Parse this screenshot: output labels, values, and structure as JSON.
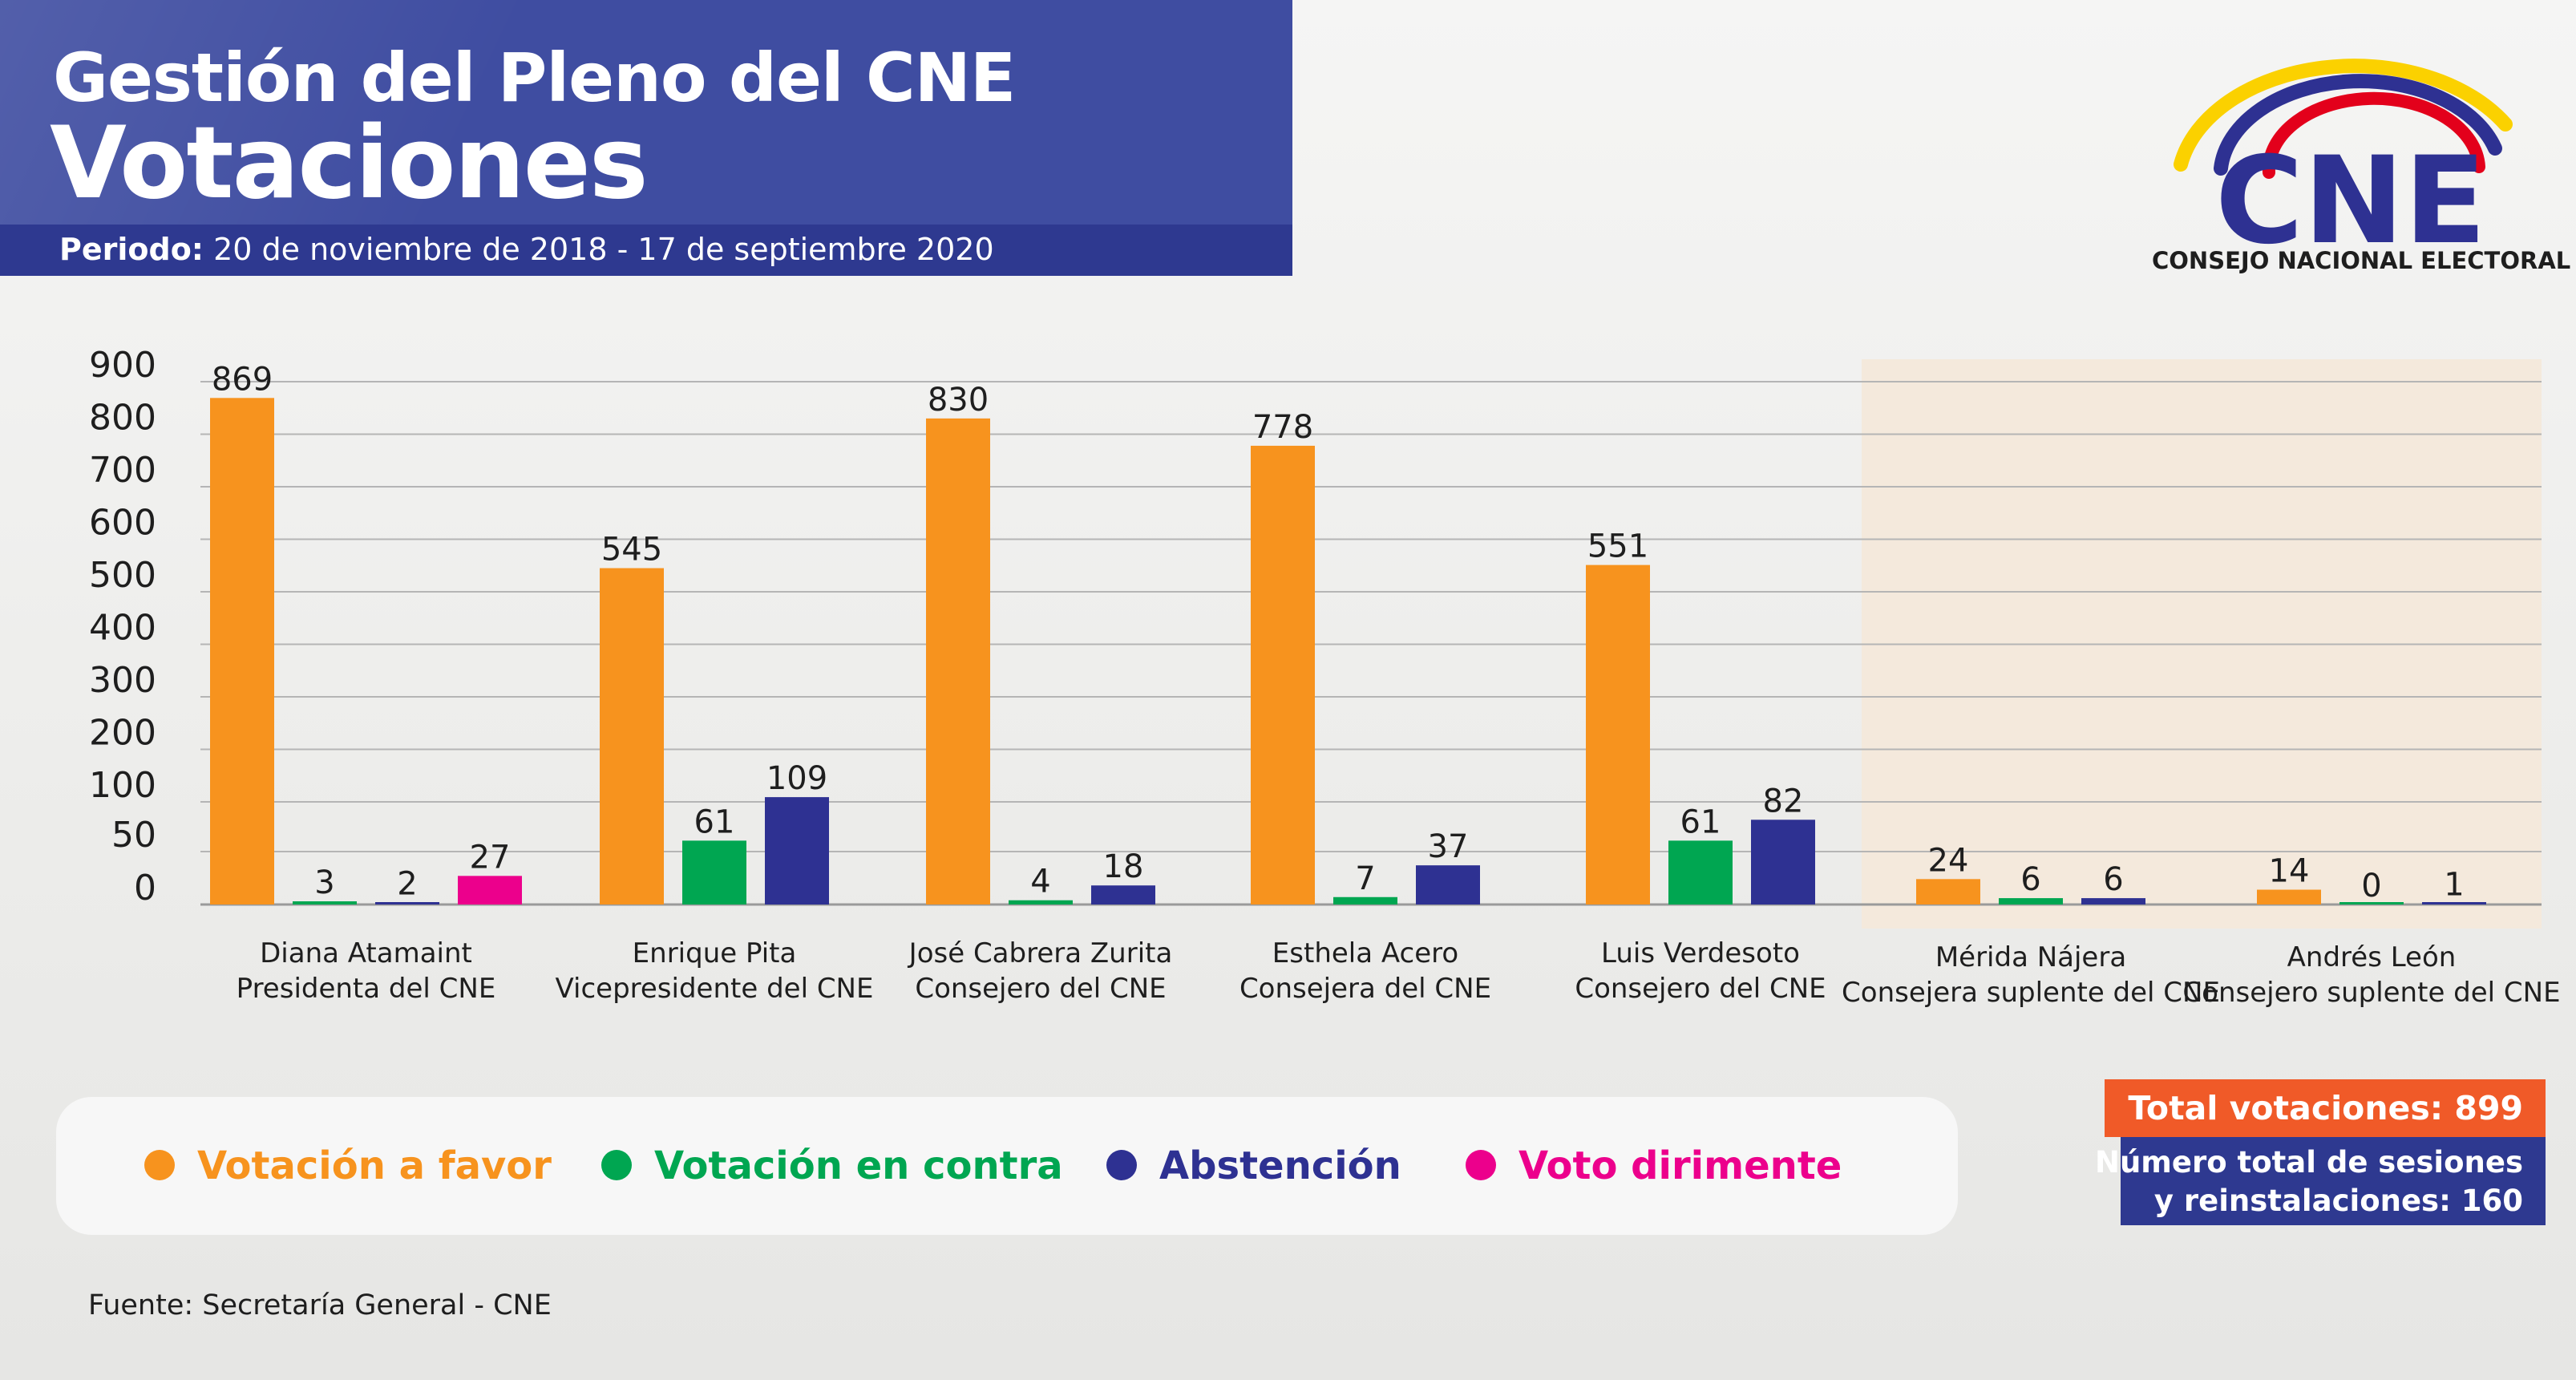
{
  "header": {
    "title_line1": "Gestión del Pleno del CNE",
    "title_line2": "Votaciones",
    "period_label": "Periodo:",
    "period_value": " 20 de noviembre de 2018 - 17 de septiembre 2020"
  },
  "logo": {
    "text": "CNE",
    "subtitle": "CONSEJO NACIONAL ELECTORAL"
  },
  "legend": {
    "items": [
      {
        "label": "Votación a favor",
        "color": "#f7931e"
      },
      {
        "label": "Votación en contra",
        "color": "#00a651"
      },
      {
        "label": "Abstención",
        "color": "#2e3192"
      },
      {
        "label": "Voto dirimente",
        "color": "#ec008c"
      }
    ]
  },
  "totals": {
    "votaciones": "Total votaciones: 899",
    "sesiones_line1": "Número total de sesiones",
    "sesiones_line2": "y reinstalaciones: 160"
  },
  "source": "Fuente: Secretaría General - CNE",
  "colors": {
    "favor": "#f7931e",
    "contra": "#00a651",
    "abstencion": "#2e3192",
    "dirimente": "#ec008c",
    "header": "#3f4da1",
    "header_dark": "#2e3990",
    "accent_orange": "#f05a28",
    "suplentes_bg": "#f4e9dc"
  },
  "chart_data": {
    "type": "bar",
    "yticks": [
      0,
      50,
      100,
      200,
      300,
      400,
      500,
      600,
      700,
      800,
      900
    ],
    "grid": true,
    "legend_position": "bottom-left",
    "highlighted_group": "Consejeros suplentes (Mérida Nájera, Andrés León)",
    "categories": [
      {
        "name": "Diana Atamaint",
        "role": "Presidenta del CNE"
      },
      {
        "name": "Enrique Pita",
        "role": "Vicepresidente del CNE"
      },
      {
        "name": "José Cabrera Zurita",
        "role": "Consejero del CNE"
      },
      {
        "name": "Esthela Acero",
        "role": "Consejera del CNE"
      },
      {
        "name": "Luis Verdesoto",
        "role": "Consejero del CNE"
      },
      {
        "name": "Mérida Nájera",
        "role": "Consejera suplente del CNE"
      },
      {
        "name": "Andrés León",
        "role": "Consejero suplente del CNE"
      }
    ],
    "series": [
      {
        "name": "Votación a favor",
        "color": "#f7931e",
        "values": [
          869,
          545,
          830,
          778,
          551,
          24,
          14
        ]
      },
      {
        "name": "Votación en contra",
        "color": "#00a651",
        "values": [
          3,
          61,
          4,
          7,
          61,
          6,
          0
        ]
      },
      {
        "name": "Abstención",
        "color": "#2e3192",
        "values": [
          2,
          109,
          18,
          37,
          82,
          6,
          1
        ]
      },
      {
        "name": "Voto dirimente",
        "color": "#ec008c",
        "values": [
          27,
          null,
          null,
          null,
          null,
          null,
          null
        ]
      }
    ]
  }
}
